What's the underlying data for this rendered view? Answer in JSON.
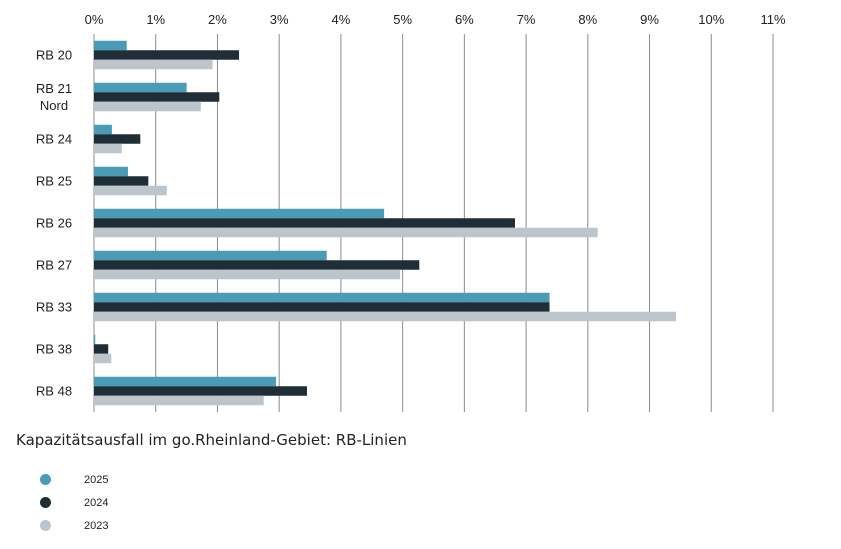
{
  "chart_data": {
    "type": "bar",
    "orientation": "horizontal",
    "title": "Kapazitätsausfall im go.Rheinland-Gebiet: RB-Linien",
    "categories": [
      [
        "RB 20"
      ],
      [
        "RB 21",
        "Nord"
      ],
      [
        "RB 24"
      ],
      [
        "RB 25"
      ],
      [
        "RB 26"
      ],
      [
        "RB 27"
      ],
      [
        "RB 33"
      ],
      [
        "RB 38"
      ],
      [
        "RB 48"
      ]
    ],
    "xlim": [
      0,
      11
    ],
    "xticks": [
      "0%",
      "1%",
      "2%",
      "3%",
      "4%",
      "5%",
      "6%",
      "7%",
      "8%",
      "9%",
      "10%",
      "11%"
    ],
    "grid": true,
    "legend_position": "bottom-left",
    "series": [
      {
        "name": "2025",
        "color": "#4a9bb5",
        "values": [
          0.53,
          1.5,
          0.29,
          0.55,
          4.7,
          3.77,
          7.38,
          0.02,
          2.95
        ]
      },
      {
        "name": "2024",
        "color": "#1f2d36",
        "values": [
          2.35,
          2.03,
          0.75,
          0.88,
          6.82,
          5.27,
          7.38,
          0.23,
          3.45
        ]
      },
      {
        "name": "2023",
        "color": "#bcc5cc",
        "values": [
          1.92,
          1.73,
          0.45,
          1.18,
          8.16,
          4.96,
          9.43,
          0.28,
          2.75
        ]
      }
    ]
  }
}
